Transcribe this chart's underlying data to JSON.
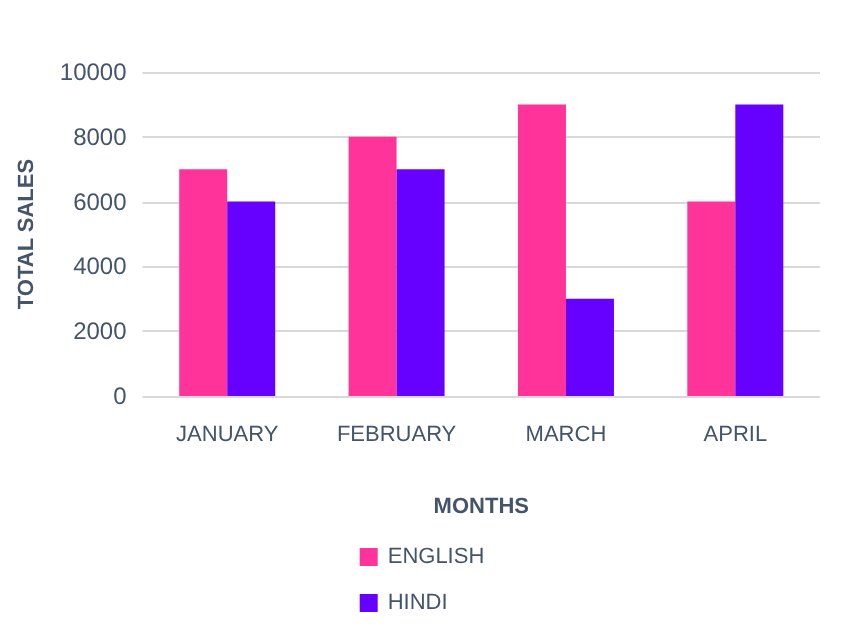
{
  "chart_data": {
    "type": "bar",
    "xlabel": "MONTHS",
    "ylabel": "TOTAL SALES",
    "categories": [
      "JANUARY",
      "FEBRUARY",
      "MARCH",
      "APRIL"
    ],
    "series": [
      {
        "name": "ENGLISH",
        "color": "#ff3399",
        "values": [
          7000,
          8000,
          9000,
          6000
        ]
      },
      {
        "name": "HINDI",
        "color": "#6600ff",
        "values": [
          6000,
          7000,
          3000,
          9000
        ]
      }
    ],
    "ylim": [
      0,
      10000
    ],
    "yticks": [
      0,
      2000,
      4000,
      6000,
      8000,
      10000
    ],
    "grid": "y",
    "legend": "bottom"
  }
}
